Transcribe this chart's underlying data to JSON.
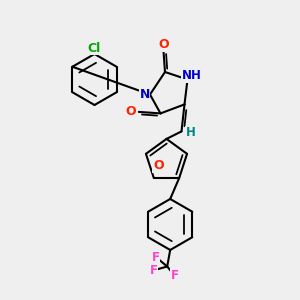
{
  "bg_color": "#efefef",
  "bond_color": "#000000",
  "bond_width": 1.5,
  "atom_colors": {
    "N": "#0000cc",
    "O": "#ff2200",
    "Cl": "#00aa00",
    "F": "#ff44cc",
    "H": "#008888"
  }
}
